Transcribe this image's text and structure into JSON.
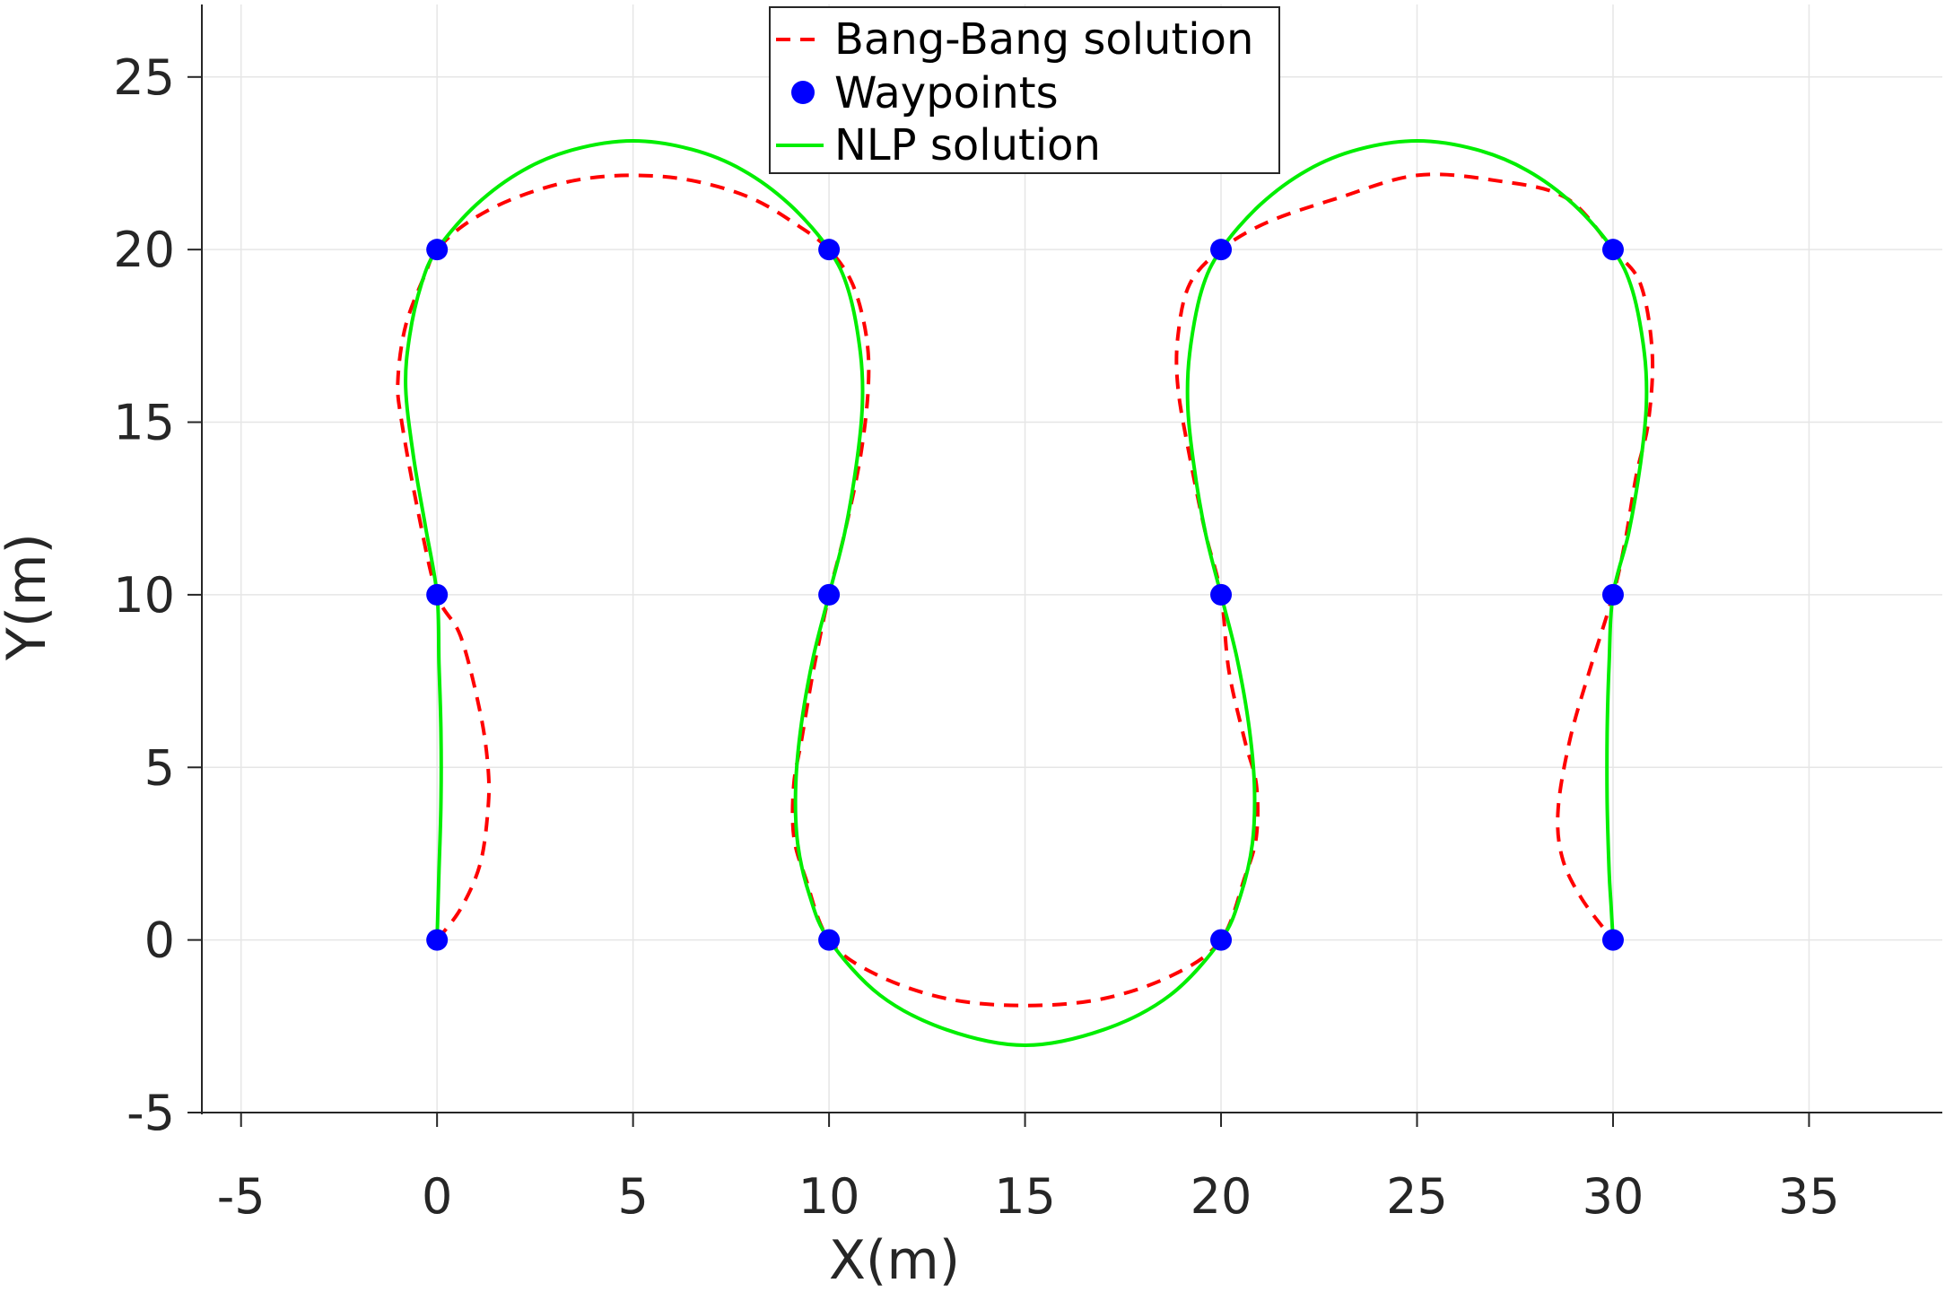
{
  "chart_data": {
    "type": "line",
    "title": "",
    "xlabel": "X(m)",
    "ylabel": "Y(m)",
    "xlim": [
      -6,
      38.4
    ],
    "ylim": [
      -5,
      27.1
    ],
    "xticks": [
      -5,
      0,
      5,
      10,
      15,
      20,
      25,
      30,
      35
    ],
    "yticks": [
      -5,
      0,
      5,
      10,
      15,
      20,
      25
    ],
    "grid": true,
    "legend_position": "top-center",
    "series": [
      {
        "name": "Bang-Bang solution",
        "style": "dashed",
        "color": "#ff0000",
        "x": [
          0,
          0.6,
          1.1,
          1.3,
          1.3,
          1.1,
          0.6,
          0,
          -0.5,
          -0.9,
          -1.0,
          -0.8,
          -0.3,
          0,
          0.8,
          2.0,
          3.5,
          5.0,
          6.5,
          8.0,
          9.2,
          10,
          10.6,
          10.95,
          11.0,
          10.8,
          10.4,
          10,
          9.6,
          9.3,
          9.1,
          9.1,
          9.4,
          10,
          11.2,
          13.0,
          15.0,
          17.0,
          18.8,
          20,
          20.6,
          20.9,
          20.9,
          20.6,
          20.2,
          20,
          19.6,
          19.2,
          18.9,
          18.9,
          19.2,
          20,
          21.2,
          23.0,
          25.0,
          27.0,
          28.8,
          30,
          30.7,
          31.0,
          30.9,
          30.6,
          30.3,
          30,
          29.4,
          28.9,
          28.6,
          28.7,
          29.2,
          30
        ],
        "y": [
          0,
          0.9,
          2.2,
          3.8,
          5.0,
          6.6,
          8.8,
          10,
          12.5,
          15.0,
          16.2,
          17.8,
          19.3,
          20,
          20.8,
          21.5,
          22.0,
          22.15,
          22.0,
          21.5,
          20.7,
          20,
          19.0,
          17.5,
          16.0,
          14.0,
          11.8,
          10,
          7.8,
          5.8,
          4.5,
          3.0,
          1.8,
          0,
          -1.0,
          -1.7,
          -1.9,
          -1.7,
          -1.0,
          0,
          1.8,
          3.0,
          4.5,
          5.8,
          7.8,
          10,
          11.8,
          14.0,
          16.0,
          17.5,
          19.0,
          20,
          20.8,
          21.5,
          22.15,
          22.0,
          21.5,
          20,
          19.0,
          17.0,
          15.0,
          13.5,
          11.5,
          10,
          7.8,
          5.8,
          3.8,
          2.4,
          1.2,
          0
        ]
      },
      {
        "name": "Waypoints",
        "style": "markers",
        "color": "#0000ff",
        "x": [
          0,
          0,
          0,
          10,
          10,
          10,
          20,
          20,
          20,
          30,
          30,
          30
        ],
        "y": [
          0,
          10,
          20,
          0,
          10,
          20,
          0,
          10,
          20,
          0,
          10,
          20
        ]
      },
      {
        "name": "NLP solution",
        "style": "solid",
        "color": "#00ee00",
        "x": [
          0,
          0.05,
          0.1,
          0.1,
          0.05,
          0,
          -0.3,
          -0.6,
          -0.8,
          -0.7,
          -0.4,
          0,
          1.0,
          2.2,
          3.5,
          5.0,
          6.5,
          7.8,
          9.0,
          10,
          10.5,
          10.8,
          10.85,
          10.7,
          10.4,
          10,
          9.6,
          9.3,
          9.15,
          9.2,
          9.5,
          10,
          11.3,
          13.0,
          15.0,
          17.0,
          18.7,
          20,
          20.5,
          20.8,
          20.85,
          20.7,
          20.4,
          20,
          19.6,
          19.3,
          19.15,
          19.2,
          19.5,
          20,
          21.0,
          22.2,
          23.5,
          25.0,
          26.5,
          27.8,
          29.0,
          30,
          30.5,
          30.8,
          30.85,
          30.7,
          30.4,
          30,
          29.9,
          29.85,
          29.85,
          29.9,
          29.95,
          30
        ],
        "y": [
          0,
          2.0,
          4.0,
          6.0,
          8.0,
          10,
          12.0,
          14.0,
          16.0,
          17.5,
          19.0,
          20,
          21.3,
          22.3,
          22.9,
          23.15,
          22.9,
          22.3,
          21.3,
          20,
          18.8,
          17.0,
          15.5,
          13.8,
          11.8,
          10,
          8.2,
          6.3,
          4.5,
          2.8,
          1.3,
          0,
          -1.6,
          -2.6,
          -3.05,
          -2.6,
          -1.6,
          0,
          1.3,
          2.8,
          4.5,
          6.3,
          8.2,
          10,
          11.8,
          13.8,
          15.5,
          17.0,
          18.8,
          20,
          21.3,
          22.3,
          22.9,
          23.15,
          22.9,
          22.3,
          21.3,
          20,
          18.8,
          17.0,
          15.5,
          13.8,
          11.8,
          10,
          8.0,
          6.0,
          4.0,
          2.0,
          1.0,
          0
        ]
      }
    ]
  }
}
